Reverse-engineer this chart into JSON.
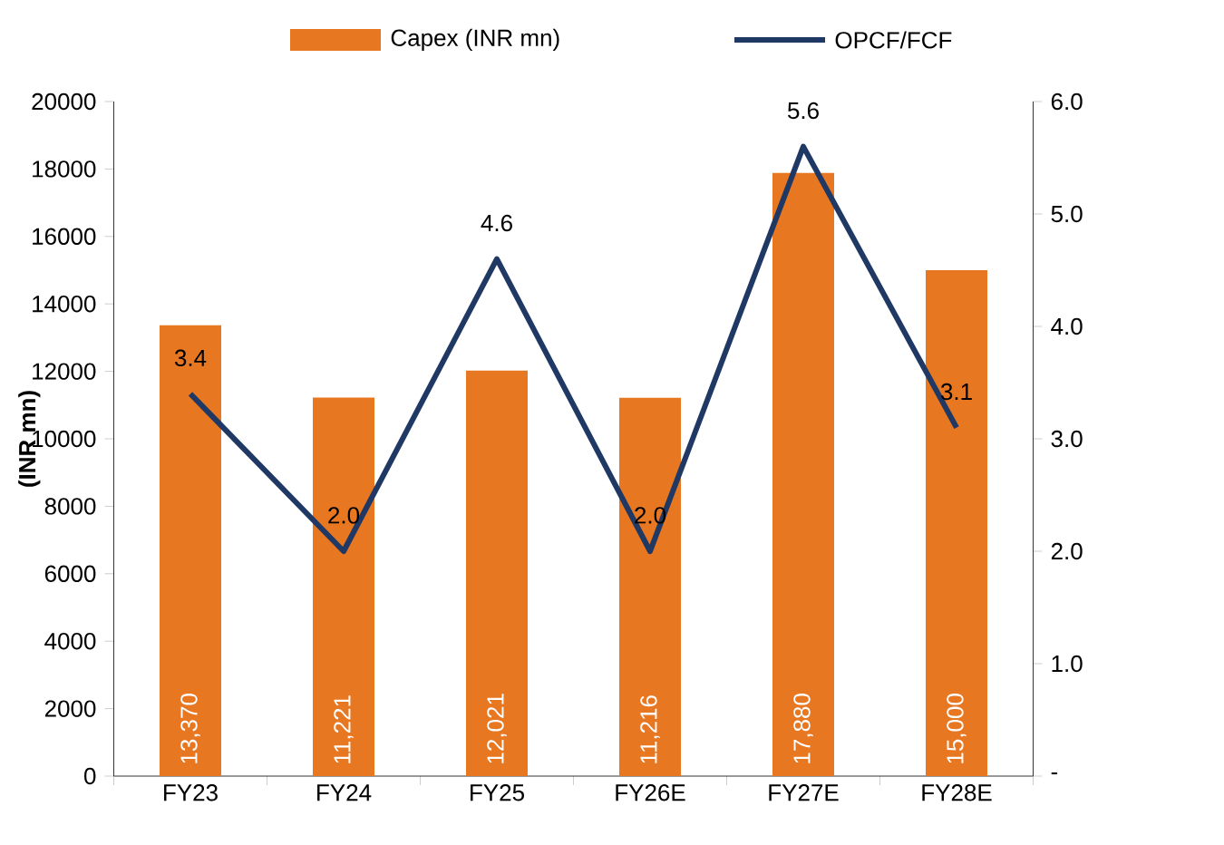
{
  "chart_data": {
    "type": "bar",
    "categories": [
      "FY23",
      "FY24",
      "FY25",
      "FY26E",
      "FY27E",
      "FY28E"
    ],
    "ylabel": "(INR mn)",
    "ylim": [
      0,
      20000
    ],
    "yticks": [
      0,
      2000,
      4000,
      6000,
      8000,
      10000,
      12000,
      14000,
      16000,
      18000,
      20000
    ],
    "y2lim": [
      0,
      6
    ],
    "y2ticks": [
      {
        "value": 0,
        "label": "-"
      },
      {
        "value": 1,
        "label": "1.0"
      },
      {
        "value": 2,
        "label": "2.0"
      },
      {
        "value": 3,
        "label": "3.0"
      },
      {
        "value": 4,
        "label": "4.0"
      },
      {
        "value": 5,
        "label": "5.0"
      },
      {
        "value": 6,
        "label": "6.0"
      }
    ],
    "legend": "top",
    "grid": false,
    "series": [
      {
        "name": "Capex (INR mn)",
        "color": "#e87722",
        "values": [
          13370,
          11221,
          12021,
          11216,
          17880,
          15000
        ],
        "value_labels": [
          "13,370",
          "11,221",
          "12,021",
          "11,216",
          "17,880",
          "15,000"
        ]
      },
      {
        "name": "OPCF/FCF",
        "type": "line",
        "axis": "y2",
        "color": "#1f3864",
        "marker": "none",
        "values": [
          3.4,
          2.0,
          4.6,
          2.0,
          5.6,
          3.1
        ],
        "value_labels": [
          "3.4",
          "2.0",
          "4.6",
          "2.0",
          "5.6",
          "3.1"
        ]
      }
    ]
  }
}
